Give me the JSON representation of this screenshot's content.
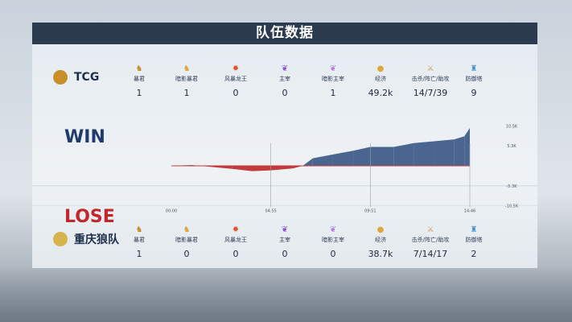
{
  "title": "队伍数据",
  "stat_labels": [
    "暴君",
    "暗影暴君",
    "风暴龙王",
    "主宰",
    "暗影主宰",
    "经济",
    "击杀/阵亡/助攻",
    "防御塔"
  ],
  "stat_icons": [
    "tyrant-icon",
    "shadow-tyrant-icon",
    "storm-dragon-icon",
    "overlord-icon",
    "shadow-overlord-icon",
    "gold-icon",
    "sword-icon",
    "tower-icon"
  ],
  "teams": [
    {
      "name": "TCG",
      "result": "WIN",
      "result_color": "#1f3a6b",
      "values": [
        "1",
        "1",
        "0",
        "0",
        "1",
        "49.2k",
        "14/7/39",
        "9"
      ]
    },
    {
      "name": "重庆狼队",
      "result": "LOSE",
      "result_color": "#c0282b",
      "values": [
        "1",
        "0",
        "0",
        "0",
        "0",
        "38.7k",
        "7/14/17",
        "2"
      ]
    }
  ],
  "chart_data": {
    "type": "area",
    "x_ticks": [
      "00:00",
      "04:55",
      "09:51",
      "14:46"
    ],
    "y_ticks": [
      "10.5K",
      "5.3K",
      "-5.3K",
      "-10.5K"
    ],
    "ylim": [
      -10.5,
      10.5
    ],
    "xlim_minutes": [
      0,
      14.77
    ],
    "positive_color": "#4a6590",
    "negative_color": "#c23a3a",
    "x": [
      0,
      1,
      2,
      3,
      4,
      4.92,
      6,
      6.5,
      7,
      8,
      9,
      9.85,
      11,
      12,
      13,
      14,
      14.5,
      14.77
    ],
    "y": [
      0,
      0.2,
      -0.3,
      -0.8,
      -1.4,
      -1.2,
      -0.7,
      0,
      2,
      3,
      4,
      5,
      5,
      6,
      6.5,
      7,
      7.8,
      10
    ]
  }
}
